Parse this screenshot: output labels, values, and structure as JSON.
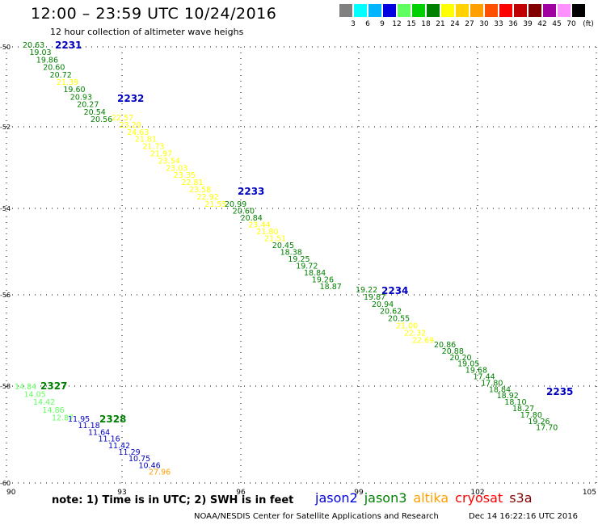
{
  "header": {
    "title": "12:00 – 23:59 UTC 10/24/2016",
    "subtitle": "12 hour collection of altimeter wave heighs"
  },
  "color_scale": {
    "labels": [
      "3",
      "6",
      "9",
      "12",
      "15",
      "18",
      "21",
      "24",
      "27",
      "30",
      "33",
      "36",
      "39",
      "42",
      "45",
      "70"
    ],
    "unit": "(ft)",
    "colors": [
      "#808080",
      "#00ffff",
      "#00b4ff",
      "#0000e0",
      "#60ff60",
      "#00d000",
      "#008000",
      "#ffff00",
      "#ffd200",
      "#ffa000",
      "#ff5000",
      "#ff0000",
      "#c00000",
      "#800000",
      "#a000a0",
      "#ff90ff",
      "#000000"
    ]
  },
  "axes": {
    "x_ticks": [
      "90",
      "93",
      "96",
      "99",
      "102",
      "105"
    ],
    "y_ticks": [
      "-50",
      "-52",
      "-54",
      "-56",
      "-58",
      "-60"
    ]
  },
  "tracks": [
    {
      "pass": "2231",
      "pass_color": "#0000c0",
      "values": [
        "20.63",
        "19.03",
        "19.86",
        "20.60",
        "20.72",
        "21.39",
        "19.60",
        "20.93",
        "20.27",
        "20.54",
        "20.56",
        "22.57",
        "23.20",
        "24.63",
        "21.81",
        "21.73",
        "21.97",
        "23.54",
        "23.03",
        "23.35",
        "22.81",
        "23.58",
        "22.92",
        "21.55",
        "20.99",
        "20.60",
        "20.84",
        "23.44",
        "21.80",
        "21.51",
        "20.45",
        "18.38",
        "19.25",
        "19.72",
        "18.84",
        "19.26",
        "18.87",
        "19.22",
        "19.87",
        "20.94",
        "20.62",
        "20.55",
        "21.00",
        "22.32",
        "22.69",
        "20.86",
        "20.88",
        "20.20",
        "19.05",
        "19.68",
        "17.44",
        "17.80",
        "18.84",
        "18.92",
        "18.10",
        "18.27",
        "17.80",
        "19.26",
        "17.70"
      ],
      "colors": [
        "g",
        "g",
        "g",
        "g",
        "g",
        "y",
        "g",
        "g",
        "g",
        "g",
        "g",
        "y",
        "y",
        "y",
        "y",
        "y",
        "y",
        "y",
        "y",
        "y",
        "y",
        "y",
        "y",
        "y",
        "g",
        "g",
        "g",
        "y",
        "y",
        "y",
        "g",
        "g",
        "g",
        "g",
        "g",
        "g",
        "g",
        "g",
        "g",
        "g",
        "g",
        "g",
        "y",
        "y",
        "y",
        "g",
        "g",
        "g",
        "g",
        "g",
        "g",
        "g",
        "g",
        "g",
        "g",
        "g",
        "g",
        "g",
        "g"
      ]
    },
    {
      "pass": "2232",
      "pass_color": "#0000c0",
      "values": [],
      "colors": []
    },
    {
      "pass": "2233",
      "pass_color": "#0000c0",
      "values": [],
      "colors": []
    },
    {
      "pass": "2234",
      "pass_color": "#0000c0",
      "values": [],
      "colors": []
    },
    {
      "pass": "2235",
      "pass_color": "#0000c0",
      "values": [],
      "colors": []
    },
    {
      "pass": "2327",
      "pass_color": "#008000",
      "values": [
        "14.84",
        "14.05",
        "14.42",
        "14.86",
        "12.87"
      ],
      "colors": [
        "lg",
        "lg",
        "lg",
        "lg",
        "lg"
      ]
    },
    {
      "pass": "2328",
      "pass_color": "#008000",
      "values": [
        "11.95",
        "11.18",
        "11.64",
        "11.16",
        "11.42",
        "11.29",
        "10.75",
        "10.46",
        "27.96"
      ],
      "colors": [
        "b",
        "b",
        "b",
        "b",
        "b",
        "b",
        "b",
        "b",
        "o"
      ]
    }
  ],
  "palette": {
    "g": "#008000",
    "y": "#ffff00",
    "lg": "#60ff60",
    "b": "#0000c0",
    "o": "#ffa000"
  },
  "legend": {
    "note": "note: 1) Time is in UTC; 2) SWH is in feet",
    "satellites": [
      {
        "name": "jason2",
        "color": "#0000e0"
      },
      {
        "name": "jason3",
        "color": "#008000"
      },
      {
        "name": "altika",
        "color": "#ffa000"
      },
      {
        "name": "cryosat",
        "color": "#ff0000"
      },
      {
        "name": "s3a",
        "color": "#800000"
      }
    ]
  },
  "footer": {
    "source": "NOAA/NESDIS Center for Satellite Applications and Research",
    "timestamp": "Dec 14 16:22:16 UTC 2016"
  }
}
